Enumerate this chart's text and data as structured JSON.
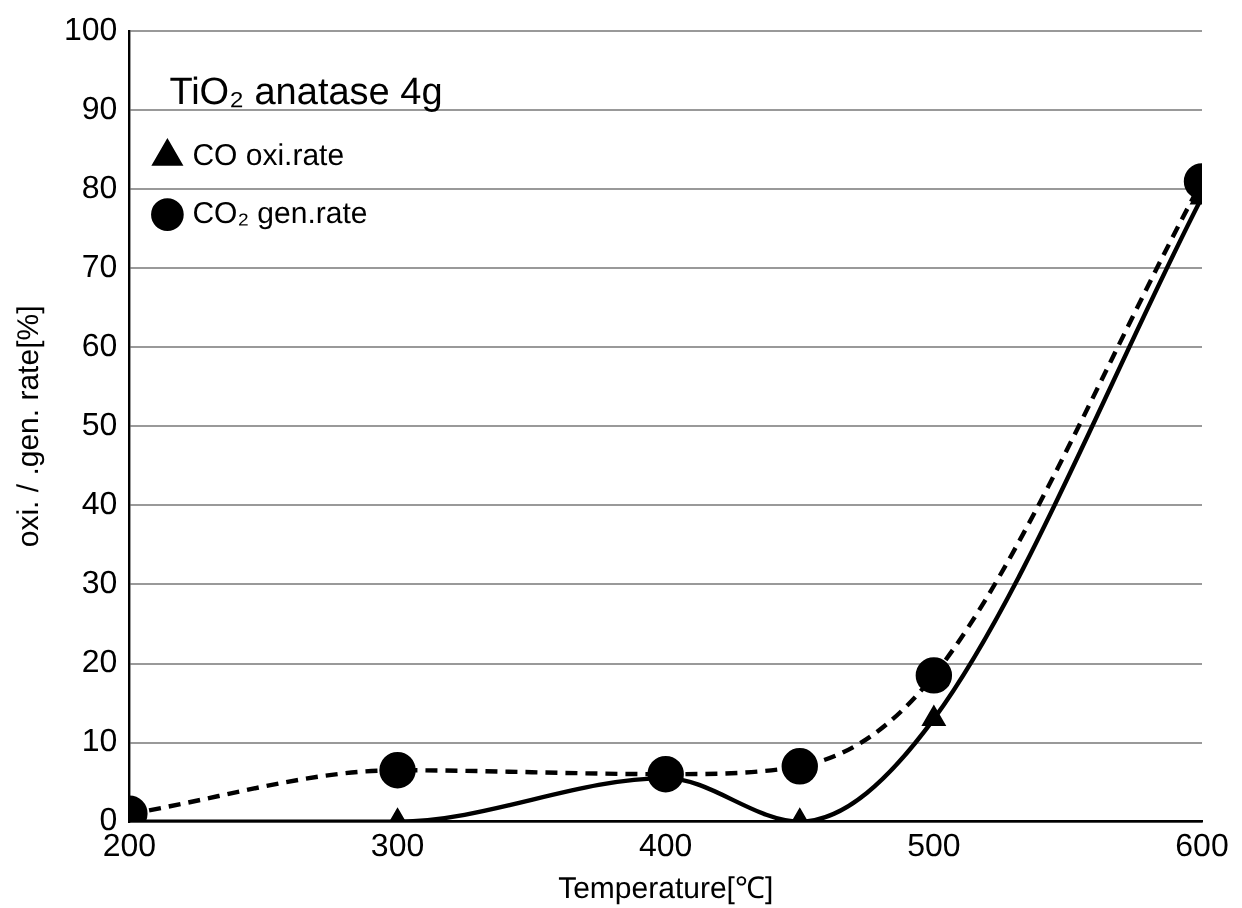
{
  "chart_data": {
    "type": "line",
    "title": "TiO₂ anatase  4g",
    "xlabel": "Temperature[℃]",
    "ylabel": "oxi. / .gen. rate[%]",
    "x": [
      200,
      300,
      400,
      450,
      500,
      600
    ],
    "series": [
      {
        "name": "CO oxi.rate",
        "color": "#000000",
        "values": [
          0,
          0,
          5.5,
          0,
          13,
          79
        ],
        "marker": "triangle",
        "line_style": "solid"
      },
      {
        "name": "CO₂ gen.rate",
        "color": "#000000",
        "values": [
          1,
          6.5,
          6,
          7,
          18.5,
          81
        ],
        "marker": "circle",
        "line_style": "dashed"
      }
    ],
    "xlim": [
      200,
      600
    ],
    "xticks": [
      200,
      300,
      400,
      500,
      600
    ],
    "ylim": [
      0,
      100
    ],
    "yticks": [
      0,
      10,
      20,
      30,
      40,
      50,
      60,
      70,
      80,
      90,
      100
    ],
    "grid": "y",
    "legend": "top left"
  }
}
